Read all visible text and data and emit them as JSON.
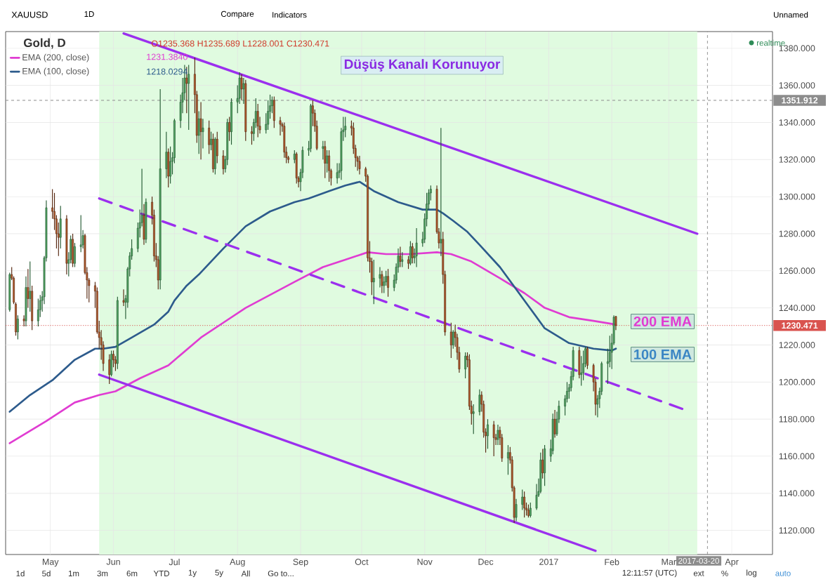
{
  "chart_data": {
    "type": "candlestick",
    "title": "Düşüş Kanalı Korunuyor",
    "x": [
      "2016-04-11",
      "2016-04-12",
      "2016-04-13",
      "2016-04-14",
      "2016-04-15",
      "2016-04-18",
      "2016-04-19",
      "2016-04-20",
      "2016-04-21",
      "2016-04-22",
      "2016-04-25",
      "2016-04-26",
      "2016-04-27",
      "2016-04-28",
      "2016-04-29",
      "2016-05-02",
      "2016-05-03",
      "2016-05-04",
      "2016-05-05",
      "2016-05-06",
      "2016-05-09",
      "2016-05-10",
      "2016-05-11",
      "2016-05-12",
      "2016-05-13",
      "2016-05-16",
      "2016-05-17",
      "2016-05-18",
      "2016-05-19",
      "2016-05-20",
      "2016-05-23",
      "2016-05-24",
      "2016-05-25",
      "2016-05-26",
      "2016-05-27",
      "2016-05-30",
      "2016-05-31",
      "2016-06-01",
      "2016-06-02",
      "2016-06-03",
      "2016-06-06",
      "2016-06-07",
      "2016-06-08",
      "2016-06-09",
      "2016-06-10",
      "2016-06-13",
      "2016-06-14",
      "2016-06-15",
      "2016-06-16",
      "2016-06-17",
      "2016-06-20",
      "2016-06-21",
      "2016-06-22",
      "2016-06-23",
      "2016-06-24",
      "2016-06-27",
      "2016-06-28",
      "2016-06-29",
      "2016-06-30",
      "2016-07-01",
      "2016-07-04",
      "2016-07-05",
      "2016-07-06",
      "2016-07-07",
      "2016-07-08",
      "2016-07-11",
      "2016-07-12",
      "2016-07-13",
      "2016-07-14",
      "2016-07-15",
      "2016-07-18",
      "2016-07-19",
      "2016-07-20",
      "2016-07-21",
      "2016-07-22",
      "2016-07-25",
      "2016-07-26",
      "2016-07-27",
      "2016-07-28",
      "2016-07-29",
      "2016-08-01",
      "2016-08-02",
      "2016-08-03",
      "2016-08-04",
      "2016-08-05",
      "2016-08-08",
      "2016-08-09",
      "2016-08-10",
      "2016-08-11",
      "2016-08-12",
      "2016-08-15",
      "2016-08-16",
      "2016-08-17",
      "2016-08-18",
      "2016-08-19",
      "2016-08-22",
      "2016-08-23",
      "2016-08-24",
      "2016-08-25",
      "2016-08-26",
      "2016-08-29",
      "2016-08-30",
      "2016-08-31",
      "2016-09-01",
      "2016-09-02",
      "2016-09-05",
      "2016-09-06",
      "2016-09-07",
      "2016-09-08",
      "2016-09-09",
      "2016-09-12",
      "2016-09-13",
      "2016-09-14",
      "2016-09-15",
      "2016-09-16",
      "2016-09-19",
      "2016-09-20",
      "2016-09-21",
      "2016-09-22",
      "2016-09-23",
      "2016-09-26",
      "2016-09-27",
      "2016-09-28",
      "2016-09-29",
      "2016-09-30",
      "2016-10-03",
      "2016-10-04",
      "2016-10-05",
      "2016-10-06",
      "2016-10-07",
      "2016-10-10",
      "2016-10-11",
      "2016-10-12",
      "2016-10-13",
      "2016-10-14",
      "2016-10-17",
      "2016-10-18",
      "2016-10-19",
      "2016-10-20",
      "2016-10-21",
      "2016-10-24",
      "2016-10-25",
      "2016-10-26",
      "2016-10-27",
      "2016-10-28",
      "2016-10-31",
      "2016-11-01",
      "2016-11-02",
      "2016-11-03",
      "2016-11-04",
      "2016-11-07",
      "2016-11-08",
      "2016-11-09",
      "2016-11-10",
      "2016-11-11",
      "2016-11-14",
      "2016-11-15",
      "2016-11-16",
      "2016-11-17",
      "2016-11-18",
      "2016-11-21",
      "2016-11-22",
      "2016-11-23",
      "2016-11-24",
      "2016-11-25",
      "2016-11-28",
      "2016-11-29",
      "2016-11-30",
      "2016-12-01",
      "2016-12-02",
      "2016-12-05",
      "2016-12-06",
      "2016-12-07",
      "2016-12-08",
      "2016-12-09",
      "2016-12-12",
      "2016-12-13",
      "2016-12-14",
      "2016-12-15",
      "2016-12-16",
      "2016-12-19",
      "2016-12-20",
      "2016-12-21",
      "2016-12-22",
      "2016-12-23",
      "2016-12-26",
      "2016-12-27",
      "2016-12-28",
      "2016-12-29",
      "2016-12-30",
      "2017-01-02",
      "2017-01-03",
      "2017-01-04",
      "2017-01-05",
      "2017-01-06",
      "2017-01-09",
      "2017-01-10",
      "2017-01-11",
      "2017-01-12",
      "2017-01-13",
      "2017-01-16",
      "2017-01-17",
      "2017-01-18",
      "2017-01-19",
      "2017-01-20",
      "2017-01-23",
      "2017-01-24",
      "2017-01-25",
      "2017-01-26",
      "2017-01-27",
      "2017-01-30",
      "2017-01-31",
      "2017-02-01",
      "2017-02-02",
      "2017-02-03"
    ],
    "ohlc": [
      [
        1239,
        1259,
        1238,
        1258
      ],
      [
        1258,
        1262,
        1255,
        1256
      ],
      [
        1256,
        1257,
        1242,
        1243
      ],
      [
        1242,
        1243,
        1225,
        1227
      ],
      [
        1227,
        1236,
        1223,
        1234
      ],
      [
        1234,
        1236,
        1230,
        1233
      ],
      [
        1233,
        1257,
        1230,
        1251
      ],
      [
        1251,
        1261,
        1240,
        1245
      ],
      [
        1245,
        1265,
        1238,
        1249
      ],
      [
        1249,
        1252,
        1228,
        1233
      ],
      [
        1233,
        1245,
        1230,
        1239
      ],
      [
        1239,
        1247,
        1235,
        1244
      ],
      [
        1244,
        1249,
        1238,
        1246
      ],
      [
        1246,
        1268,
        1242,
        1267
      ],
      [
        1267,
        1298,
        1265,
        1294
      ],
      [
        1294,
        1304,
        1288,
        1292
      ],
      [
        1292,
        1302,
        1282,
        1288
      ],
      [
        1288,
        1290,
        1272,
        1280
      ],
      [
        1280,
        1286,
        1268,
        1278
      ],
      [
        1278,
        1295,
        1272,
        1288
      ],
      [
        1288,
        1290,
        1258,
        1264
      ],
      [
        1264,
        1270,
        1257,
        1266
      ],
      [
        1266,
        1279,
        1264,
        1277
      ],
      [
        1277,
        1280,
        1262,
        1264
      ],
      [
        1264,
        1275,
        1262,
        1273
      ],
      [
        1273,
        1290,
        1270,
        1274
      ],
      [
        1274,
        1282,
        1272,
        1279
      ],
      [
        1279,
        1280,
        1258,
        1259
      ],
      [
        1259,
        1262,
        1245,
        1255
      ],
      [
        1255,
        1256,
        1243,
        1252
      ],
      [
        1252,
        1254,
        1240,
        1249
      ],
      [
        1249,
        1251,
        1226,
        1227
      ],
      [
        1227,
        1233,
        1218,
        1224
      ],
      [
        1224,
        1228,
        1212,
        1220
      ],
      [
        1220,
        1222,
        1206,
        1210
      ],
      [
        1212,
        1215,
        1199,
        1204
      ],
      [
        1204,
        1217,
        1203,
        1215
      ],
      [
        1215,
        1217,
        1208,
        1212
      ],
      [
        1212,
        1214,
        1206,
        1210
      ],
      [
        1210,
        1246,
        1207,
        1244
      ],
      [
        1244,
        1250,
        1241,
        1243
      ],
      [
        1243,
        1247,
        1234,
        1245
      ],
      [
        1243,
        1262,
        1240,
        1261
      ],
      [
        1261,
        1270,
        1257,
        1268
      ],
      [
        1268,
        1277,
        1266,
        1272
      ],
      [
        1272,
        1286,
        1270,
        1283
      ],
      [
        1283,
        1293,
        1278,
        1286
      ],
      [
        1286,
        1315,
        1284,
        1290
      ],
      [
        1290,
        1296,
        1274,
        1277
      ],
      [
        1277,
        1299,
        1275,
        1297
      ],
      [
        1297,
        1300,
        1285,
        1290
      ],
      [
        1290,
        1293,
        1265,
        1268
      ],
      [
        1268,
        1275,
        1262,
        1266
      ],
      [
        1266,
        1268,
        1250,
        1255
      ],
      [
        1255,
        1358,
        1250,
        1315
      ],
      [
        1315,
        1335,
        1310,
        1324
      ],
      [
        1324,
        1326,
        1305,
        1311
      ],
      [
        1311,
        1327,
        1307,
        1319
      ],
      [
        1319,
        1324,
        1312,
        1321
      ],
      [
        1321,
        1342,
        1318,
        1341
      ],
      [
        1341,
        1355,
        1337,
        1351
      ],
      [
        1351,
        1364,
        1345,
        1356
      ],
      [
        1356,
        1371,
        1352,
        1364
      ],
      [
        1364,
        1370,
        1345,
        1361
      ],
      [
        1361,
        1371,
        1336,
        1366
      ],
      [
        1366,
        1375,
        1345,
        1355
      ],
      [
        1355,
        1357,
        1329,
        1333
      ],
      [
        1333,
        1346,
        1323,
        1342
      ],
      [
        1342,
        1351,
        1320,
        1335
      ],
      [
        1335,
        1342,
        1326,
        1337
      ],
      [
        1337,
        1341,
        1323,
        1328
      ],
      [
        1328,
        1335,
        1325,
        1331
      ],
      [
        1331,
        1334,
        1313,
        1315
      ],
      [
        1315,
        1332,
        1312,
        1331
      ],
      [
        1331,
        1335,
        1318,
        1322
      ],
      [
        1322,
        1325,
        1312,
        1315
      ],
      [
        1315,
        1322,
        1313,
        1320
      ],
      [
        1320,
        1342,
        1317,
        1340
      ],
      [
        1340,
        1343,
        1330,
        1335
      ],
      [
        1335,
        1353,
        1328,
        1351
      ],
      [
        1351,
        1360,
        1345,
        1353
      ],
      [
        1353,
        1367,
        1350,
        1364
      ],
      [
        1364,
        1366,
        1352,
        1358
      ],
      [
        1358,
        1364,
        1350,
        1361
      ],
      [
        1361,
        1363,
        1330,
        1335
      ],
      [
        1335,
        1338,
        1328,
        1334
      ],
      [
        1334,
        1342,
        1330,
        1340
      ],
      [
        1340,
        1353,
        1337,
        1346
      ],
      [
        1346,
        1350,
        1332,
        1338
      ],
      [
        1338,
        1343,
        1334,
        1336
      ],
      [
        1336,
        1345,
        1334,
        1339
      ],
      [
        1339,
        1352,
        1336,
        1346
      ],
      [
        1346,
        1355,
        1342,
        1349
      ],
      [
        1349,
        1354,
        1345,
        1352
      ],
      [
        1352,
        1354,
        1337,
        1341
      ],
      [
        1341,
        1343,
        1333,
        1339
      ],
      [
        1339,
        1340,
        1335,
        1338
      ],
      [
        1338,
        1340,
        1321,
        1324
      ],
      [
        1324,
        1327,
        1318,
        1321
      ],
      [
        1321,
        1322,
        1318,
        1320
      ],
      [
        1320,
        1325,
        1318,
        1323
      ],
      [
        1323,
        1324,
        1307,
        1310
      ],
      [
        1310,
        1311,
        1305,
        1308
      ],
      [
        1308,
        1315,
        1303,
        1313
      ],
      [
        1313,
        1327,
        1310,
        1325
      ],
      [
        1325,
        1330,
        1322,
        1326
      ],
      [
        1326,
        1350,
        1324,
        1349
      ],
      [
        1349,
        1352,
        1338,
        1345
      ],
      [
        1345,
        1347,
        1335,
        1338
      ],
      [
        1338,
        1341,
        1325,
        1326
      ],
      [
        1326,
        1330,
        1320,
        1327
      ],
      [
        1327,
        1330,
        1310,
        1318
      ],
      [
        1318,
        1325,
        1313,
        1322
      ],
      [
        1322,
        1325,
        1308,
        1314
      ],
      [
        1314,
        1315,
        1306,
        1310
      ],
      [
        1310,
        1318,
        1307,
        1313
      ],
      [
        1313,
        1318,
        1310,
        1314
      ],
      [
        1314,
        1337,
        1309,
        1335
      ],
      [
        1335,
        1343,
        1330,
        1336
      ],
      [
        1336,
        1343,
        1332,
        1338
      ],
      [
        1338,
        1341,
        1333,
        1337
      ],
      [
        1337,
        1340,
        1323,
        1326
      ],
      [
        1326,
        1328,
        1316,
        1321
      ],
      [
        1321,
        1322,
        1314,
        1319
      ],
      [
        1319,
        1322,
        1312,
        1315
      ],
      [
        1315,
        1316,
        1308,
        1311
      ],
      [
        1311,
        1312,
        1265,
        1267
      ],
      [
        1267,
        1276,
        1259,
        1265
      ],
      [
        1265,
        1267,
        1247,
        1254
      ],
      [
        1254,
        1266,
        1242,
        1256
      ],
      [
        1256,
        1262,
        1251,
        1258
      ],
      [
        1258,
        1260,
        1248,
        1252
      ],
      [
        1252,
        1257,
        1248,
        1254
      ],
      [
        1254,
        1260,
        1252,
        1257
      ],
      [
        1257,
        1261,
        1246,
        1251
      ],
      [
        1251,
        1258,
        1249,
        1255
      ],
      [
        1255,
        1264,
        1253,
        1262
      ],
      [
        1262,
        1272,
        1259,
        1268
      ],
      [
        1268,
        1273,
        1262,
        1265
      ],
      [
        1265,
        1270,
        1262,
        1266
      ],
      [
        1266,
        1268,
        1261,
        1264
      ],
      [
        1264,
        1276,
        1263,
        1273
      ],
      [
        1273,
        1275,
        1264,
        1267
      ],
      [
        1267,
        1272,
        1264,
        1268
      ],
      [
        1268,
        1283,
        1262,
        1275
      ],
      [
        1275,
        1281,
        1273,
        1277
      ],
      [
        1277,
        1291,
        1275,
        1288
      ],
      [
        1288,
        1302,
        1284,
        1296
      ],
      [
        1296,
        1304,
        1293,
        1302
      ],
      [
        1302,
        1306,
        1298,
        1304
      ],
      [
        1304,
        1306,
        1280,
        1281
      ],
      [
        1281,
        1283,
        1272,
        1275
      ],
      [
        1275,
        1337,
        1268,
        1277
      ],
      [
        1277,
        1281,
        1253,
        1258
      ],
      [
        1258,
        1260,
        1225,
        1227
      ],
      [
        1227,
        1232,
        1213,
        1220
      ],
      [
        1220,
        1228,
        1218,
        1227
      ],
      [
        1227,
        1231,
        1219,
        1224
      ],
      [
        1224,
        1226,
        1212,
        1216
      ],
      [
        1216,
        1219,
        1205,
        1207
      ],
      [
        1207,
        1216,
        1202,
        1214
      ],
      [
        1214,
        1216,
        1208,
        1212
      ],
      [
        1212,
        1215,
        1185,
        1187
      ],
      [
        1187,
        1190,
        1177,
        1183
      ],
      [
        1183,
        1188,
        1172,
        1184
      ],
      [
        1184,
        1196,
        1182,
        1193
      ],
      [
        1193,
        1195,
        1184,
        1188
      ],
      [
        1188,
        1190,
        1170,
        1173
      ],
      [
        1173,
        1175,
        1162,
        1171
      ],
      [
        1171,
        1180,
        1164,
        1177
      ],
      [
        1177,
        1179,
        1160,
        1170
      ],
      [
        1170,
        1172,
        1166,
        1169
      ],
      [
        1169,
        1177,
        1166,
        1174
      ],
      [
        1174,
        1176,
        1166,
        1170
      ],
      [
        1170,
        1172,
        1157,
        1159
      ],
      [
        1159,
        1166,
        1150,
        1162
      ],
      [
        1162,
        1165,
        1156,
        1158
      ],
      [
        1158,
        1160,
        1141,
        1143
      ],
      [
        1143,
        1144,
        1124,
        1127
      ],
      [
        1127,
        1137,
        1125,
        1134
      ],
      [
        1134,
        1142,
        1131,
        1138
      ],
      [
        1138,
        1141,
        1127,
        1132
      ],
      [
        1132,
        1135,
        1128,
        1131
      ],
      [
        1131,
        1134,
        1127,
        1128
      ],
      [
        1128,
        1135,
        1127,
        1132
      ],
      [
        1132,
        1145,
        1131,
        1139
      ],
      [
        1139,
        1148,
        1138,
        1141
      ],
      [
        1141,
        1162,
        1140,
        1158
      ],
      [
        1158,
        1164,
        1148,
        1151
      ],
      [
        1151,
        1166,
        1144,
        1164
      ],
      [
        1160,
        1169,
        1157,
        1164
      ],
      [
        1163,
        1183,
        1161,
        1180
      ],
      [
        1180,
        1185,
        1170,
        1172
      ],
      [
        1172,
        1184,
        1171,
        1180
      ],
      [
        1180,
        1190,
        1178,
        1187
      ],
      [
        1187,
        1193,
        1182,
        1191
      ],
      [
        1191,
        1200,
        1189,
        1195
      ],
      [
        1195,
        1199,
        1191,
        1197
      ],
      [
        1197,
        1206,
        1195,
        1203
      ],
      [
        1203,
        1219,
        1201,
        1217
      ],
      [
        1217,
        1219,
        1202,
        1204
      ],
      [
        1204,
        1214,
        1198,
        1205
      ],
      [
        1205,
        1217,
        1201,
        1210
      ],
      [
        1210,
        1219,
        1208,
        1218
      ],
      [
        1218,
        1219,
        1207,
        1209
      ],
      [
        1209,
        1210,
        1195,
        1200
      ],
      [
        1200,
        1202,
        1182,
        1188
      ],
      [
        1188,
        1193,
        1181,
        1191
      ],
      [
        1191,
        1197,
        1186,
        1195
      ],
      [
        1195,
        1211,
        1193,
        1210
      ],
      [
        1210,
        1218,
        1199,
        1211
      ],
      [
        1211,
        1225,
        1208,
        1216
      ],
      [
        1216,
        1226,
        1207,
        1221
      ],
      [
        1221,
        1236,
        1220,
        1235
      ],
      [
        1235.368,
        1235.689,
        1228.001,
        1230.471
      ]
    ],
    "series": [
      {
        "name": "EMA (200, close)",
        "type": "line",
        "color": "#e03cd2",
        "x": [
          "2016-04-11",
          "2016-04-20",
          "2016-04-29",
          "2016-05-13",
          "2016-05-25",
          "2016-06-02",
          "2016-06-14",
          "2016-06-28",
          "2016-07-14",
          "2016-07-25",
          "2016-08-05",
          "2016-08-17",
          "2016-08-29",
          "2016-09-12",
          "2016-09-23",
          "2016-10-04",
          "2016-10-13",
          "2016-10-25",
          "2016-11-07",
          "2016-11-14",
          "2016-11-24",
          "2016-12-08",
          "2016-12-20",
          "2016-12-30",
          "2017-01-11",
          "2017-01-23",
          "2017-02-03"
        ],
        "values": [
          1167,
          1173,
          1179,
          1189,
          1193,
          1195,
          1202,
          1209,
          1224,
          1232,
          1240,
          1247,
          1254,
          1262,
          1266,
          1270,
          1269,
          1269,
          1270,
          1269,
          1265,
          1256,
          1248,
          1240,
          1235,
          1233,
          1231
        ]
      },
      {
        "name": "EMA (100, close)",
        "type": "line",
        "color": "#2d5b8c",
        "x": [
          "2016-04-11",
          "2016-04-21",
          "2016-05-02",
          "2016-05-13",
          "2016-05-23",
          "2016-05-27",
          "2016-06-02",
          "2016-06-10",
          "2016-06-21",
          "2016-06-28",
          "2016-07-01",
          "2016-07-07",
          "2016-07-13",
          "2016-07-25",
          "2016-08-05",
          "2016-08-17",
          "2016-08-29",
          "2016-09-05",
          "2016-09-15",
          "2016-09-23",
          "2016-09-30",
          "2016-10-07",
          "2016-10-19",
          "2016-10-31",
          "2016-11-07",
          "2016-11-10",
          "2016-11-15",
          "2016-11-22",
          "2016-11-28",
          "2016-12-08",
          "2016-12-20",
          "2016-12-30",
          "2017-01-11",
          "2017-01-23",
          "2017-02-01",
          "2017-02-03"
        ],
        "values": [
          1184,
          1193,
          1201,
          1212,
          1218,
          1218,
          1219,
          1224,
          1231,
          1238,
          1244,
          1252,
          1258,
          1272,
          1284,
          1292,
          1297,
          1299,
          1303,
          1306,
          1308,
          1303,
          1297,
          1293,
          1293,
          1291,
          1287,
          1281,
          1274,
          1262,
          1244,
          1229,
          1221,
          1218,
          1217,
          1218
        ]
      },
      {
        "type": "line",
        "color": "#9b2fee",
        "x": [
          "2016-06-06",
          "2017-03-15"
        ],
        "values": [
          1388,
          1280
        ]
      },
      {
        "type": "line",
        "color": "#9b2fee",
        "line_style": "dashed",
        "x": [
          "2016-05-25",
          "2017-03-09"
        ],
        "values": [
          1299,
          1185
        ]
      },
      {
        "type": "line",
        "color": "#9b2fee",
        "x": [
          "2016-05-25",
          "2017-01-24"
        ],
        "values": [
          1204,
          1109
        ]
      }
    ],
    "xlim": [
      "2016-04-09",
      "2017-04-21"
    ],
    "ylim": [
      1107,
      1389
    ],
    "xticks": [
      {
        "value": "2016-05-01",
        "label": "May"
      },
      {
        "value": "2016-06-01",
        "label": "Jun"
      },
      {
        "value": "2016-07-01",
        "label": "Jul"
      },
      {
        "value": "2016-08-01",
        "label": "Aug"
      },
      {
        "value": "2016-09-01",
        "label": "Sep"
      },
      {
        "value": "2016-10-01",
        "label": "Oct"
      },
      {
        "value": "2016-11-01",
        "label": "Nov"
      },
      {
        "value": "2016-12-01",
        "label": "Dec"
      },
      {
        "value": "2017-01-01",
        "label": "2017"
      },
      {
        "value": "2017-02-01",
        "label": "Feb"
      },
      {
        "value": "2017-03-01",
        "label": "Mar"
      },
      {
        "value": "2017-04-01",
        "label": "Apr"
      }
    ],
    "yticks": [
      {
        "value": 1120,
        "label": "1120.000"
      },
      {
        "value": 1140,
        "label": "1140.000"
      },
      {
        "value": 1160,
        "label": "1160.000"
      },
      {
        "value": 1180,
        "label": "1180.000"
      },
      {
        "value": 1200,
        "label": "1200.000"
      },
      {
        "value": 1220,
        "label": "1220.000"
      },
      {
        "value": 1240,
        "label": "1240.000"
      },
      {
        "value": 1260,
        "label": "1260.000"
      },
      {
        "value": 1280,
        "label": "1280.000"
      },
      {
        "value": 1300,
        "label": "1300.000"
      },
      {
        "value": 1320,
        "label": "1320.000"
      },
      {
        "value": 1340,
        "label": "1340.000"
      },
      {
        "value": 1360,
        "label": "1360.000"
      },
      {
        "value": 1380,
        "label": "1380.000"
      }
    ],
    "ref_lines": [
      {
        "axis": "y",
        "value": 1351.912,
        "label": "1351.912",
        "color": "#8c8c8c",
        "line_style": "dashed"
      },
      {
        "axis": "y",
        "value": 1230.471,
        "label": "1230.471",
        "color": "#d9534f",
        "line_style": "dotted"
      },
      {
        "axis": "x",
        "value": "2017-03-20",
        "label": "2017-03-20",
        "color": "#8c8c8c",
        "line_style": "dashed"
      }
    ],
    "bands": [
      {
        "axis": "x",
        "from": "2016-05-25",
        "to": "2017-03-15",
        "color": "#e0fbe0"
      }
    ],
    "grid": true,
    "legend": "top left",
    "annotations": [
      "Gold, D",
      "O1235.368 H1235.689 L1228.001 C1230.471",
      "1231.3840",
      "1218.0294",
      "realtime",
      "200 EMA",
      "100 EMA",
      "XAUUSD",
      "1D",
      "Compare",
      "Indicators",
      "Unnamed",
      "1d",
      "5d",
      "1m",
      "3m",
      "6m",
      "YTD",
      "1y",
      "5y",
      "All",
      "Go to...",
      "12:11:57 (UTC)",
      "ext",
      "%",
      "log",
      "auto"
    ]
  }
}
